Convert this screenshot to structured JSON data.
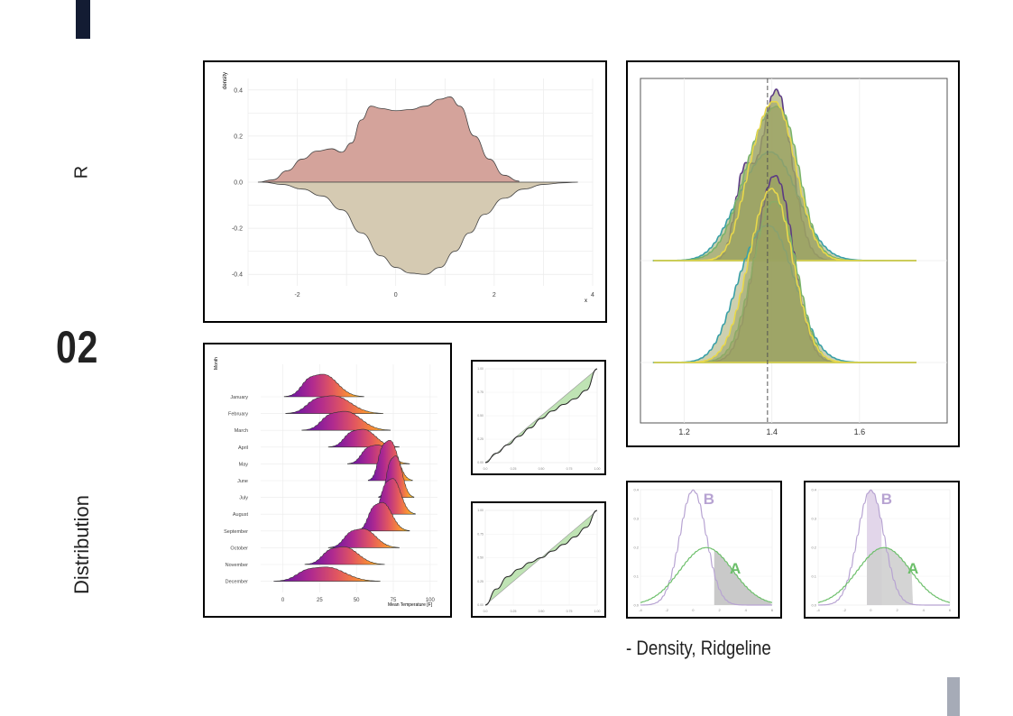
{
  "side": {
    "label_top": "R",
    "section_number": "02",
    "label_bottom": "Distribution"
  },
  "caption": "- Density,  Ridgeline",
  "colors": {
    "accent_dark": "#131c33",
    "accent_gray": "#a6abb7",
    "mirror_top": "#d4a39b",
    "mirror_bottom": "#d5cab2",
    "ridge_fill": "#9ba262",
    "cdf_fill": "#bfe3b4",
    "density_a": "#6cbf6a",
    "density_b": "#b7a3d2"
  },
  "chart_data": [
    {
      "type": "area",
      "subtype": "mirrored-density",
      "xlabel": "x",
      "ylabel": "density",
      "xlim": [
        -3,
        4
      ],
      "ylim": [
        -0.45,
        0.45
      ],
      "x_ticks": [
        "-2",
        "0",
        "2",
        "4"
      ],
      "y_ticks": [
        "0.4",
        "0.2",
        "0.0",
        "-0.2",
        "-0.4"
      ],
      "series": [
        {
          "x": [
            -2.8,
            -2.5,
            -2.2,
            -1.9,
            -1.6,
            -1.3,
            -1.1,
            -0.9,
            -0.7,
            -0.5,
            -0.3,
            0,
            0.3,
            0.6,
            0.9,
            1.1,
            1.3,
            1.6,
            1.9,
            2.2,
            2.5
          ],
          "values": [
            0,
            0.01,
            0.05,
            0.1,
            0.135,
            0.145,
            0.13,
            0.17,
            0.27,
            0.33,
            0.32,
            0.31,
            0.315,
            0.33,
            0.36,
            0.37,
            0.33,
            0.2,
            0.1,
            0.03,
            0.005
          ]
        },
        {
          "x": [
            -2.7,
            -2.3,
            -1.9,
            -1.5,
            -1.1,
            -0.7,
            -0.3,
            0,
            0.3,
            0.6,
            0.9,
            1.2,
            1.5,
            1.8,
            2.2,
            2.6,
            3,
            3.4,
            3.7
          ],
          "values": [
            0,
            -0.01,
            -0.03,
            -0.06,
            -0.12,
            -0.22,
            -0.32,
            -0.37,
            -0.395,
            -0.4,
            -0.37,
            -0.3,
            -0.22,
            -0.14,
            -0.07,
            -0.03,
            -0.01,
            -0.003,
            0
          ]
        }
      ]
    },
    {
      "type": "area",
      "subtype": "ridgeline",
      "ylabel": "Month",
      "xlabel": "Mean Temperature [F]",
      "xlim": [
        -15,
        105
      ],
      "x_ticks": [
        "0",
        "25",
        "50",
        "75",
        "100"
      ],
      "categories": [
        "January",
        "February",
        "March",
        "April",
        "May",
        "June",
        "July",
        "August",
        "September",
        "October",
        "November",
        "December"
      ],
      "series": [
        {
          "name": "January",
          "center": 28,
          "spread": 9,
          "height": 1.9
        },
        {
          "name": "February",
          "center": 35,
          "spread": 11,
          "height": 1.5
        },
        {
          "name": "March",
          "center": 43,
          "spread": 10,
          "height": 1.6
        },
        {
          "name": "April",
          "center": 55,
          "spread": 8,
          "height": 1.5
        },
        {
          "name": "May",
          "center": 65,
          "spread": 7,
          "height": 1.6
        },
        {
          "name": "June",
          "center": 73,
          "spread": 5,
          "height": 3.4
        },
        {
          "name": "July",
          "center": 77,
          "spread": 4,
          "height": 3.5
        },
        {
          "name": "August",
          "center": 75,
          "spread": 5,
          "height": 3.0
        },
        {
          "name": "September",
          "center": 68,
          "spread": 6,
          "height": 2.4
        },
        {
          "name": "October",
          "center": 55,
          "spread": 8,
          "height": 1.6
        },
        {
          "name": "November",
          "center": 42,
          "spread": 9,
          "height": 1.5
        },
        {
          "name": "December",
          "center": 30,
          "spread": 12,
          "height": 1.2
        }
      ]
    },
    {
      "type": "line",
      "subtype": "cdf-comparison",
      "xlim": [
        0,
        1
      ],
      "ylim": [
        0,
        1
      ],
      "x_ticks": [
        "0.0",
        "0.25",
        "0.50",
        "0.75",
        "1.00"
      ],
      "y_ticks": [
        "0.00",
        "0.25",
        "0.50",
        "0.75",
        "1.00"
      ],
      "series": [
        {
          "x": [
            0,
            0.1,
            0.2,
            0.3,
            0.4,
            0.5,
            0.6,
            0.7,
            0.8,
            0.9,
            1
          ],
          "values": [
            0,
            0.1,
            0.19,
            0.28,
            0.37,
            0.47,
            0.55,
            0.62,
            0.68,
            0.77,
            1
          ]
        }
      ]
    },
    {
      "type": "line",
      "subtype": "cdf-comparison",
      "xlim": [
        0,
        1
      ],
      "ylim": [
        0,
        1
      ],
      "x_ticks": [
        "0.0",
        "0.25",
        "0.50",
        "0.75",
        "1.00"
      ],
      "y_ticks": [
        "0.00",
        "0.25",
        "0.50",
        "0.75",
        "1.00"
      ],
      "series": [
        {
          "x": [
            0,
            0.1,
            0.2,
            0.3,
            0.4,
            0.5,
            0.6,
            0.7,
            0.8,
            0.9,
            1
          ],
          "values": [
            0,
            0.17,
            0.3,
            0.38,
            0.45,
            0.5,
            0.57,
            0.64,
            0.72,
            0.82,
            1
          ]
        }
      ]
    },
    {
      "type": "area",
      "subtype": "grouped-ridgeline",
      "xlim": [
        1.1,
        1.8
      ],
      "x_ticks": [
        "1.2",
        "1.4",
        "1.6"
      ],
      "reference_line": 1.39,
      "series": [
        {
          "name": "purple",
          "color": "#5b3a84"
        },
        {
          "name": "teal",
          "color": "#3aa0a8"
        },
        {
          "name": "green",
          "color": "#7ab46a"
        },
        {
          "name": "yellow",
          "color": "#e8d84a"
        }
      ]
    },
    {
      "type": "line",
      "subtype": "two-normal-densities",
      "xlim": [
        -4,
        6
      ],
      "ylim": [
        0,
        0.4
      ],
      "x_ticks": [
        "-4",
        "-2",
        "0",
        "2",
        "4",
        "6"
      ],
      "y_ticks": [
        "0.0",
        "0.1",
        "0.2",
        "0.3",
        "0.4"
      ],
      "labels": [
        "A",
        "B"
      ],
      "series": [
        {
          "name": "A",
          "mean": 1,
          "sd": 2
        },
        {
          "name": "B",
          "mean": 0,
          "sd": 1
        }
      ],
      "shaded": "right-tail"
    },
    {
      "type": "line",
      "subtype": "two-normal-densities",
      "xlim": [
        -4,
        6
      ],
      "ylim": [
        0,
        0.4
      ],
      "x_ticks": [
        "-4",
        "-2",
        "0",
        "2",
        "4",
        "6"
      ],
      "y_ticks": [
        "0.0",
        "0.1",
        "0.2",
        "0.3",
        "0.4"
      ],
      "labels": [
        "A",
        "B"
      ],
      "series": [
        {
          "name": "A",
          "mean": 1,
          "sd": 2
        },
        {
          "name": "B",
          "mean": 0,
          "sd": 1
        }
      ],
      "shaded": "center-band"
    }
  ]
}
